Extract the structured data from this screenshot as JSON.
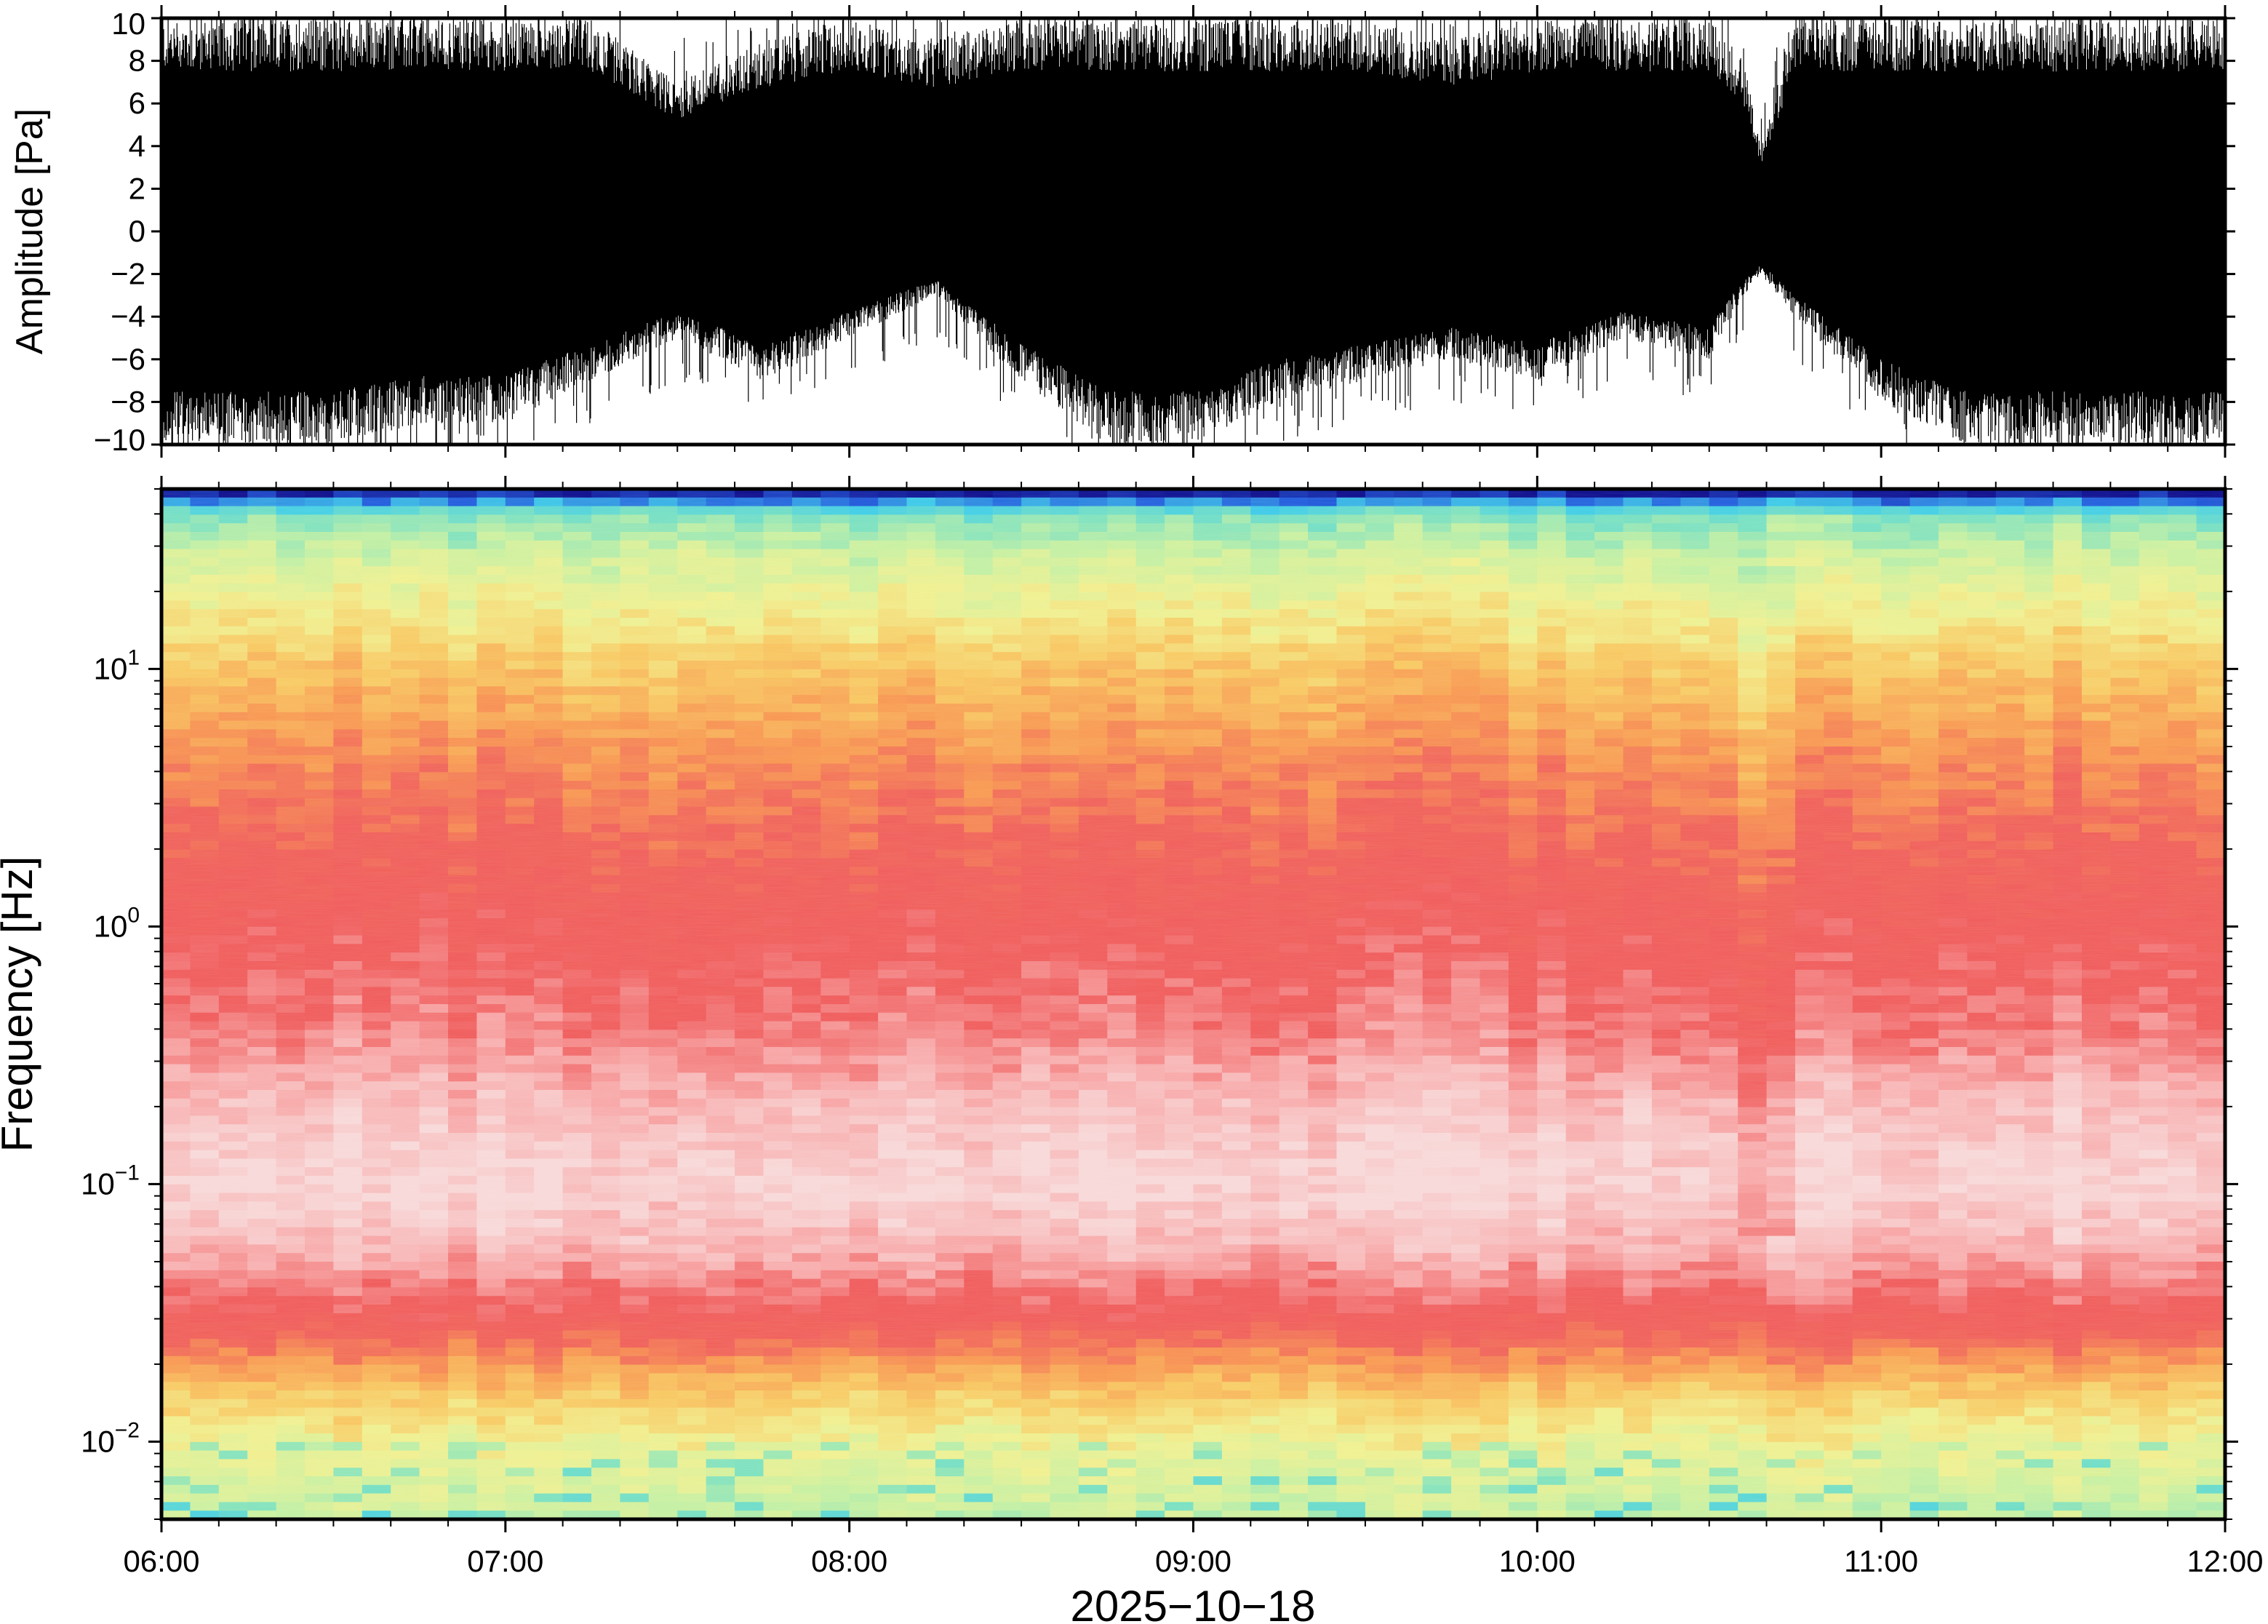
{
  "chart_data": [
    {
      "type": "line",
      "panel": "waveform",
      "ylabel": "Amplitude [Pa]",
      "ylim": [
        -10,
        10
      ],
      "yticks": [
        {
          "value": 10,
          "label": "10"
        },
        {
          "value": 8,
          "label": "8"
        },
        {
          "value": 6,
          "label": "6"
        },
        {
          "value": 4,
          "label": "4"
        },
        {
          "value": 2,
          "label": "2"
        },
        {
          "value": 0,
          "label": "0"
        },
        {
          "value": -2,
          "label": "−2"
        },
        {
          "value": -4,
          "label": "−4"
        },
        {
          "value": -6,
          "label": "−6"
        },
        {
          "value": -8,
          "label": "−8"
        },
        {
          "value": -10,
          "label": "−10"
        }
      ],
      "xlim_hours": [
        6,
        12
      ],
      "trace_color": "#000000",
      "envelope": {
        "time_hours": [
          6.0,
          6.25,
          6.5,
          6.75,
          7.0,
          7.25,
          7.5,
          7.75,
          8.0,
          8.25,
          8.5,
          8.75,
          9.0,
          9.25,
          9.5,
          9.75,
          10.0,
          10.25,
          10.5,
          10.6,
          10.65,
          10.75,
          11.0,
          11.25,
          11.5,
          11.75,
          12.0
        ],
        "upper": [
          10,
          10,
          10,
          10,
          10,
          10,
          7,
          9,
          10,
          9,
          10,
          10,
          10,
          10,
          10,
          9,
          10,
          10,
          10,
          8,
          4,
          10,
          10,
          10,
          10,
          10,
          10
        ],
        "lower": [
          -10,
          -10,
          -10,
          -9,
          -9,
          -7,
          -5,
          -7,
          -5,
          -3,
          -7,
          -10,
          -10,
          -8,
          -7,
          -6,
          -7,
          -5,
          -6,
          -3,
          -2,
          -4,
          -8,
          -10,
          -10,
          -10,
          -10
        ]
      }
    },
    {
      "type": "heatmap",
      "panel": "spectrogram",
      "ylabel": "Frequency [Hz]",
      "xlabel": "2025−10−18",
      "yscale": "log",
      "ylim": [
        0.005,
        50
      ],
      "yticks": [
        {
          "value": 10,
          "base": "10",
          "exp": "1"
        },
        {
          "value": 1,
          "base": "10",
          "exp": "0"
        },
        {
          "value": 0.1,
          "base": "10",
          "exp": "−1"
        },
        {
          "value": 0.01,
          "base": "10",
          "exp": "−2"
        }
      ],
      "xticks": [
        {
          "hours": 6,
          "label": "06:00"
        },
        {
          "hours": 7,
          "label": "07:00"
        },
        {
          "hours": 8,
          "label": "08:00"
        },
        {
          "hours": 9,
          "label": "09:00"
        },
        {
          "hours": 10,
          "label": "10:00"
        },
        {
          "hours": 11,
          "label": "11:00"
        },
        {
          "hours": 12,
          "label": "12:00"
        }
      ],
      "colormap": [
        "#0a0a8c",
        "#1e5adc",
        "#3ccce8",
        "#78e0c0",
        "#c8f0a0",
        "#f0f090",
        "#f8c860",
        "#f89850",
        "#f06058",
        "#f05a5a",
        "#f8a8a8",
        "#f8d8d8"
      ],
      "power_profile": {
        "log10_freq": [
          1.69,
          1.66,
          1.6,
          1.45,
          1.25,
          1.0,
          0.7,
          0.4,
          0.0,
          -0.4,
          -0.7,
          -1.0,
          -1.25,
          -1.5,
          -1.65,
          -1.8,
          -2.0,
          -2.3
        ],
        "level": [
          0.0,
          0.2,
          0.28,
          0.38,
          0.46,
          0.56,
          0.65,
          0.72,
          0.8,
          0.86,
          0.95,
          1.0,
          0.93,
          0.8,
          0.68,
          0.55,
          0.45,
          0.36
        ]
      }
    }
  ]
}
